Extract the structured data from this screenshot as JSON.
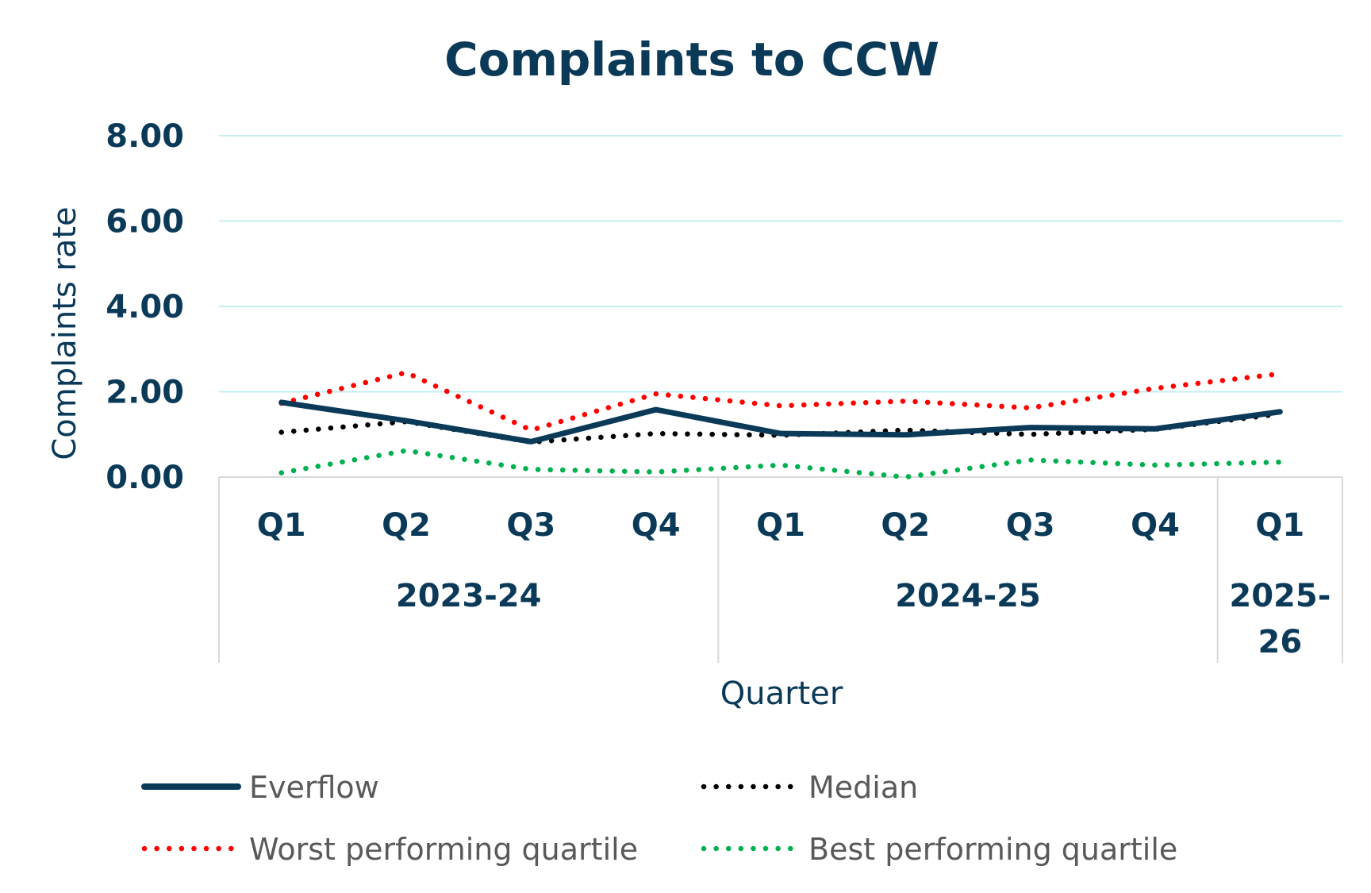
{
  "chart_data": {
    "type": "line",
    "title": "Complaints to CCW",
    "ylabel": "Complaints rate",
    "xlabel": "Quarter",
    "ylim": [
      0,
      8
    ],
    "yticks": [
      "0.00",
      "2.00",
      "4.00",
      "6.00",
      "8.00"
    ],
    "yticks_values": [
      0,
      2,
      4,
      6,
      8
    ],
    "grid": true,
    "legend_position": "bottom",
    "categories": [
      "Q1",
      "Q2",
      "Q3",
      "Q4",
      "Q1",
      "Q2",
      "Q3",
      "Q4",
      "Q1"
    ],
    "groups": [
      {
        "label_lines": [
          "2023-24"
        ],
        "count": 4
      },
      {
        "label_lines": [
          "2024-25"
        ],
        "count": 4
      },
      {
        "label_lines": [
          "2025-",
          "26"
        ],
        "count": 1
      }
    ],
    "series": [
      {
        "name": "Everflow",
        "style": "solid",
        "color": "#0b3a59",
        "values": [
          1.75,
          1.32,
          0.83,
          1.58,
          1.02,
          0.99,
          1.16,
          1.13,
          1.53
        ]
      },
      {
        "name": "Median",
        "style": "dotted",
        "color": "#000000",
        "values": [
          1.05,
          1.3,
          0.82,
          1.02,
          0.98,
          1.1,
          1.0,
          1.12,
          1.48
        ]
      },
      {
        "name": "Worst performing quartile",
        "style": "dotted",
        "color": "#ff0000",
        "values": [
          1.73,
          2.45,
          1.1,
          1.95,
          1.67,
          1.78,
          1.62,
          2.08,
          2.42
        ]
      },
      {
        "name": "Best performing quartile",
        "style": "dotted",
        "color": "#00b050",
        "values": [
          0.1,
          0.62,
          0.18,
          0.12,
          0.28,
          0.0,
          0.4,
          0.28,
          0.35
        ]
      }
    ]
  },
  "colors": {
    "text": "#0b3a59",
    "gridline": "#c5eef0",
    "axis": "#d9d9d9",
    "legend_text": "#595959"
  }
}
